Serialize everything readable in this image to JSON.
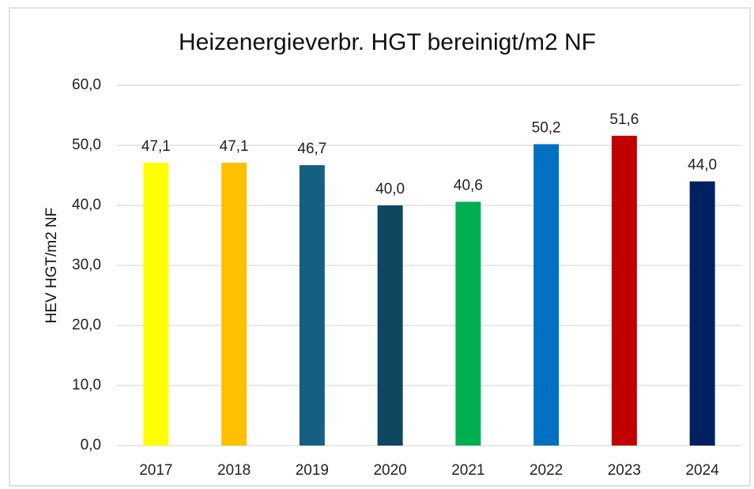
{
  "chart_data": {
    "type": "bar",
    "title": "Heizenergieverbr. HGT bereinigt/m2 NF",
    "ylabel": "HEV HGT/m2 NF",
    "categories": [
      "2017",
      "2018",
      "2019",
      "2020",
      "2021",
      "2022",
      "2023",
      "2024"
    ],
    "values": [
      47.1,
      47.1,
      46.7,
      40.0,
      40.6,
      50.2,
      51.6,
      44.0
    ],
    "value_labels": [
      "47,1",
      "47,1",
      "46,7",
      "40,0",
      "40,6",
      "50,2",
      "51,6",
      "44,0"
    ],
    "colors": [
      "#ffff00",
      "#ffc000",
      "#156082",
      "#0f4761",
      "#00b050",
      "#0070c0",
      "#c00000",
      "#002060"
    ],
    "ylim": [
      0,
      60
    ],
    "yticks": [
      {
        "value": 0,
        "label": "0,0"
      },
      {
        "value": 10,
        "label": "10,0"
      },
      {
        "value": 20,
        "label": "20,0"
      },
      {
        "value": 30,
        "label": "30,0"
      },
      {
        "value": 40,
        "label": "40,0"
      },
      {
        "value": 50,
        "label": "50,0"
      },
      {
        "value": 60,
        "label": "60,0"
      }
    ],
    "grid": true
  }
}
